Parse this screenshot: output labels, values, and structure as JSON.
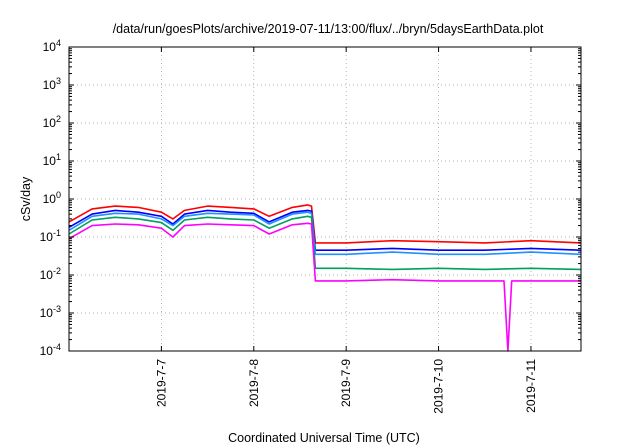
{
  "chart_data": {
    "type": "line",
    "title": "/data/run/goesPlots/archive/2019-07-11/13:00/flux/../bryn/5daysEarthData.plot",
    "xlabel": "Coordinated Universal Time (UTC)",
    "ylabel": "cSv/day",
    "y_scale": "log",
    "ylim": [
      0.0001,
      10000
    ],
    "xlim": [
      "2019-07-06 00:00",
      "2019-07-11 13:00"
    ],
    "grid": true,
    "x_ticks": [
      {
        "date": "2019-07-07",
        "label": "2019-7-7"
      },
      {
        "date": "2019-07-08",
        "label": "2019-7-8"
      },
      {
        "date": "2019-07-09",
        "label": "2019-7-9"
      },
      {
        "date": "2019-07-10",
        "label": "2019-7-10"
      },
      {
        "date": "2019-07-11",
        "label": "2019-7-11"
      }
    ],
    "y_ticks": [
      {
        "value": 0.0001,
        "base": "10",
        "exp": "-4"
      },
      {
        "value": 0.001,
        "base": "10",
        "exp": "-3"
      },
      {
        "value": 0.01,
        "base": "10",
        "exp": "-2"
      },
      {
        "value": 0.1,
        "base": "10",
        "exp": "-1"
      },
      {
        "value": 1,
        "base": "10",
        "exp": "0"
      },
      {
        "value": 10,
        "base": "10",
        "exp": "1"
      },
      {
        "value": 100,
        "base": "10",
        "exp": "2"
      },
      {
        "value": 1000,
        "base": "10",
        "exp": "3"
      },
      {
        "value": 10000,
        "base": "10",
        "exp": "4"
      }
    ],
    "series": [
      {
        "color": "#ff0000",
        "points": [
          [
            "2019-07-06 00:00",
            0.25
          ],
          [
            "2019-07-06 06:00",
            0.55
          ],
          [
            "2019-07-06 12:00",
            0.65
          ],
          [
            "2019-07-06 18:00",
            0.6
          ],
          [
            "2019-07-07 00:00",
            0.45
          ],
          [
            "2019-07-07 03:00",
            0.3
          ],
          [
            "2019-07-07 06:00",
            0.5
          ],
          [
            "2019-07-07 12:00",
            0.65
          ],
          [
            "2019-07-07 18:00",
            0.6
          ],
          [
            "2019-07-08 00:00",
            0.55
          ],
          [
            "2019-07-08 04:00",
            0.35
          ],
          [
            "2019-07-08 10:00",
            0.6
          ],
          [
            "2019-07-08 14:00",
            0.7
          ],
          [
            "2019-07-08 15:00",
            0.65
          ],
          [
            "2019-07-08 16:00",
            0.07
          ],
          [
            "2019-07-09 00:00",
            0.07
          ],
          [
            "2019-07-09 12:00",
            0.08
          ],
          [
            "2019-07-10 00:00",
            0.075
          ],
          [
            "2019-07-10 12:00",
            0.07
          ],
          [
            "2019-07-11 00:00",
            0.08
          ],
          [
            "2019-07-11 13:00",
            0.07
          ]
        ]
      },
      {
        "color": "#0000ff",
        "points": [
          [
            "2019-07-06 00:00",
            0.18
          ],
          [
            "2019-07-06 06:00",
            0.4
          ],
          [
            "2019-07-06 12:00",
            0.5
          ],
          [
            "2019-07-06 18:00",
            0.45
          ],
          [
            "2019-07-07 00:00",
            0.35
          ],
          [
            "2019-07-07 03:00",
            0.22
          ],
          [
            "2019-07-07 06:00",
            0.4
          ],
          [
            "2019-07-07 12:00",
            0.5
          ],
          [
            "2019-07-07 18:00",
            0.45
          ],
          [
            "2019-07-08 00:00",
            0.42
          ],
          [
            "2019-07-08 04:00",
            0.25
          ],
          [
            "2019-07-08 10:00",
            0.45
          ],
          [
            "2019-07-08 14:00",
            0.5
          ],
          [
            "2019-07-08 15:00",
            0.48
          ],
          [
            "2019-07-08 16:00",
            0.045
          ],
          [
            "2019-07-09 00:00",
            0.045
          ],
          [
            "2019-07-09 12:00",
            0.05
          ],
          [
            "2019-07-10 00:00",
            0.045
          ],
          [
            "2019-07-10 12:00",
            0.045
          ],
          [
            "2019-07-11 00:00",
            0.05
          ],
          [
            "2019-07-11 13:00",
            0.045
          ]
        ]
      },
      {
        "color": "#1e90ff",
        "points": [
          [
            "2019-07-06 00:00",
            0.15
          ],
          [
            "2019-07-06 06:00",
            0.35
          ],
          [
            "2019-07-06 12:00",
            0.42
          ],
          [
            "2019-07-06 18:00",
            0.4
          ],
          [
            "2019-07-07 00:00",
            0.3
          ],
          [
            "2019-07-07 03:00",
            0.2
          ],
          [
            "2019-07-07 06:00",
            0.35
          ],
          [
            "2019-07-07 12:00",
            0.42
          ],
          [
            "2019-07-07 18:00",
            0.4
          ],
          [
            "2019-07-08 00:00",
            0.38
          ],
          [
            "2019-07-08 04:00",
            0.22
          ],
          [
            "2019-07-08 10:00",
            0.4
          ],
          [
            "2019-07-08 14:00",
            0.45
          ],
          [
            "2019-07-08 15:00",
            0.42
          ],
          [
            "2019-07-08 16:00",
            0.035
          ],
          [
            "2019-07-09 00:00",
            0.035
          ],
          [
            "2019-07-09 12:00",
            0.04
          ],
          [
            "2019-07-10 00:00",
            0.035
          ],
          [
            "2019-07-10 12:00",
            0.035
          ],
          [
            "2019-07-11 00:00",
            0.04
          ],
          [
            "2019-07-11 13:00",
            0.035
          ]
        ]
      },
      {
        "color": "#00a060",
        "points": [
          [
            "2019-07-06 00:00",
            0.12
          ],
          [
            "2019-07-06 06:00",
            0.28
          ],
          [
            "2019-07-06 12:00",
            0.33
          ],
          [
            "2019-07-06 18:00",
            0.3
          ],
          [
            "2019-07-07 00:00",
            0.24
          ],
          [
            "2019-07-07 03:00",
            0.15
          ],
          [
            "2019-07-07 06:00",
            0.28
          ],
          [
            "2019-07-07 12:00",
            0.33
          ],
          [
            "2019-07-07 18:00",
            0.3
          ],
          [
            "2019-07-08 00:00",
            0.28
          ],
          [
            "2019-07-08 04:00",
            0.17
          ],
          [
            "2019-07-08 10:00",
            0.3
          ],
          [
            "2019-07-08 14:00",
            0.35
          ],
          [
            "2019-07-08 15:00",
            0.33
          ],
          [
            "2019-07-08 16:00",
            0.015
          ],
          [
            "2019-07-09 00:00",
            0.015
          ],
          [
            "2019-07-09 12:00",
            0.014
          ],
          [
            "2019-07-10 00:00",
            0.015
          ],
          [
            "2019-07-10 12:00",
            0.014
          ],
          [
            "2019-07-11 00:00",
            0.015
          ],
          [
            "2019-07-11 13:00",
            0.014
          ]
        ]
      },
      {
        "color": "#ff00ff",
        "points": [
          [
            "2019-07-06 00:00",
            0.09
          ],
          [
            "2019-07-06 06:00",
            0.2
          ],
          [
            "2019-07-06 12:00",
            0.22
          ],
          [
            "2019-07-06 18:00",
            0.21
          ],
          [
            "2019-07-07 00:00",
            0.17
          ],
          [
            "2019-07-07 03:00",
            0.1
          ],
          [
            "2019-07-07 06:00",
            0.2
          ],
          [
            "2019-07-07 12:00",
            0.22
          ],
          [
            "2019-07-07 18:00",
            0.21
          ],
          [
            "2019-07-08 00:00",
            0.2
          ],
          [
            "2019-07-08 04:00",
            0.12
          ],
          [
            "2019-07-08 10:00",
            0.21
          ],
          [
            "2019-07-08 14:00",
            0.23
          ],
          [
            "2019-07-08 15:00",
            0.22
          ],
          [
            "2019-07-08 16:00",
            0.007
          ],
          [
            "2019-07-09 00:00",
            0.007
          ],
          [
            "2019-07-09 12:00",
            0.0075
          ],
          [
            "2019-07-10 00:00",
            0.007
          ],
          [
            "2019-07-10 12:00",
            0.007
          ],
          [
            "2019-07-10 17:00",
            0.007
          ],
          [
            "2019-07-10 18:00",
            0.0001
          ],
          [
            "2019-07-10 19:00",
            0.007
          ],
          [
            "2019-07-11 00:00",
            0.007
          ],
          [
            "2019-07-11 13:00",
            0.007
          ]
        ]
      }
    ]
  }
}
